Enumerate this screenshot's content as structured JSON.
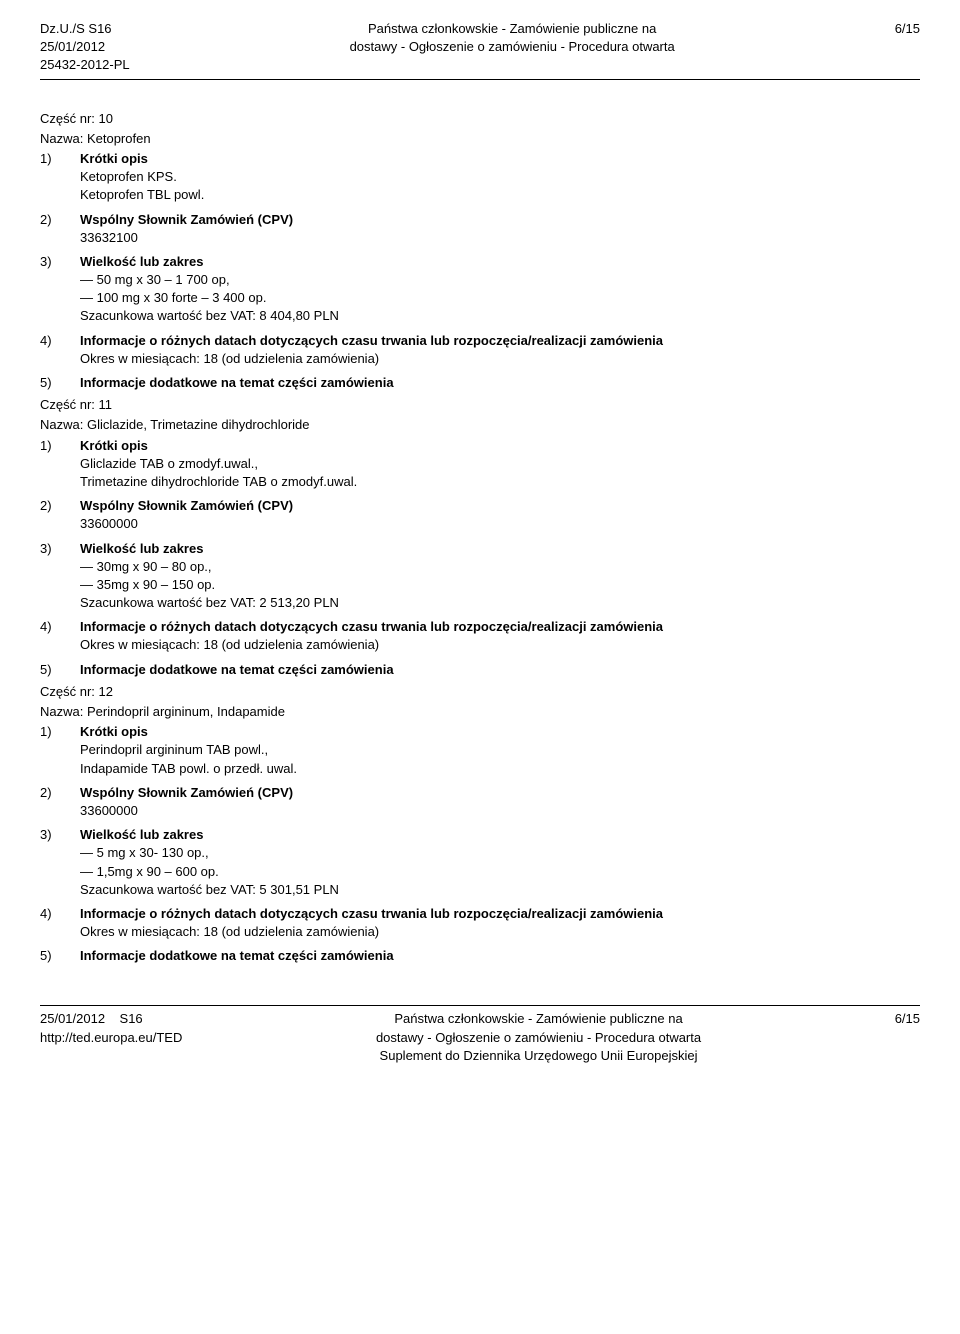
{
  "header": {
    "ref1": "Dz.U./S S16",
    "date": "25/01/2012",
    "ref2": "25432-2012-PL",
    "title_line1": "Państwa członkowskie - Zamówienie publiczne na",
    "title_line2": "dostawy - Ogłoszenie o zamówieniu - Procedura otwarta",
    "page": "6/15"
  },
  "parts": [
    {
      "part_no": "Część nr: 10",
      "name_label": "Nazwa: Ketoprofen",
      "items": [
        {
          "num": "1)",
          "title": "Krótki opis",
          "lines": [
            "Ketoprofen KPS.",
            "Ketoprofen TBL powl."
          ]
        },
        {
          "num": "2)",
          "title": "Wspólny Słownik Zamówień (CPV)",
          "lines": [
            "33632100"
          ]
        },
        {
          "num": "3)",
          "title": "Wielkość lub zakres",
          "lines": [
            "— 50 mg x 30 – 1 700 op,",
            "— 100 mg x 30 forte – 3 400 op.",
            "Szacunkowa wartość bez VAT: 8 404,80 PLN"
          ]
        },
        {
          "num": "4)",
          "title": "Informacje o różnych datach dotyczących czasu trwania lub rozpoczęcia/realizacji zamówienia",
          "lines": [
            "Okres w miesiącach: 18 (od udzielenia zamówienia)"
          ]
        },
        {
          "num": "5)",
          "title": "Informacje dodatkowe na temat części zamówienia",
          "lines": []
        }
      ]
    },
    {
      "part_no": "Część nr: 11",
      "name_label": "Nazwa: Gliclazide, Trimetazine dihydrochloride",
      "items": [
        {
          "num": "1)",
          "title": "Krótki opis",
          "lines": [
            "Gliclazide TAB o zmodyf.uwal.,",
            "Trimetazine dihydrochloride TAB o zmodyf.uwal."
          ]
        },
        {
          "num": "2)",
          "title": "Wspólny Słownik Zamówień (CPV)",
          "lines": [
            "33600000"
          ]
        },
        {
          "num": "3)",
          "title": "Wielkość lub zakres",
          "lines": [
            "— 30mg x 90 – 80 op.,",
            "— 35mg x 90 – 150 op.",
            "Szacunkowa wartość bez VAT: 2 513,20 PLN"
          ]
        },
        {
          "num": "4)",
          "title": "Informacje o różnych datach dotyczących czasu trwania lub rozpoczęcia/realizacji zamówienia",
          "lines": [
            "Okres w miesiącach: 18 (od udzielenia zamówienia)"
          ]
        },
        {
          "num": "5)",
          "title": "Informacje dodatkowe na temat części zamówienia",
          "lines": []
        }
      ]
    },
    {
      "part_no": "Część nr: 12",
      "name_label": "Nazwa: Perindopril argininum, Indapamide",
      "items": [
        {
          "num": "1)",
          "title": "Krótki opis",
          "lines": [
            "Perindopril argininum TAB powl.,",
            "Indapamide TAB powl. o przedł. uwal."
          ]
        },
        {
          "num": "2)",
          "title": "Wspólny Słownik Zamówień (CPV)",
          "lines": [
            "33600000"
          ]
        },
        {
          "num": "3)",
          "title": "Wielkość lub zakres",
          "lines": [
            "— 5 mg x 30- 130 op.,",
            "— 1,5mg x 90 – 600 op.",
            "Szacunkowa wartość bez VAT: 5 301,51 PLN"
          ]
        },
        {
          "num": "4)",
          "title": "Informacje o różnych datach dotyczących czasu trwania lub rozpoczęcia/realizacji zamówienia",
          "lines": [
            "Okres w miesiącach: 18 (od udzielenia zamówienia)"
          ]
        },
        {
          "num": "5)",
          "title": "Informacje dodatkowe na temat części zamówienia",
          "lines": []
        }
      ]
    }
  ],
  "footer": {
    "left_line1": "25/01/2012",
    "left_line1b": "S16",
    "left_line2": "http://ted.europa.eu/TED",
    "center_line1": "Państwa członkowskie - Zamówienie publiczne na",
    "center_line2": "dostawy - Ogłoszenie o zamówieniu - Procedura otwarta",
    "center_line3": "Suplement do Dziennika Urzędowego Unii Europejskiej",
    "page": "6/15"
  }
}
